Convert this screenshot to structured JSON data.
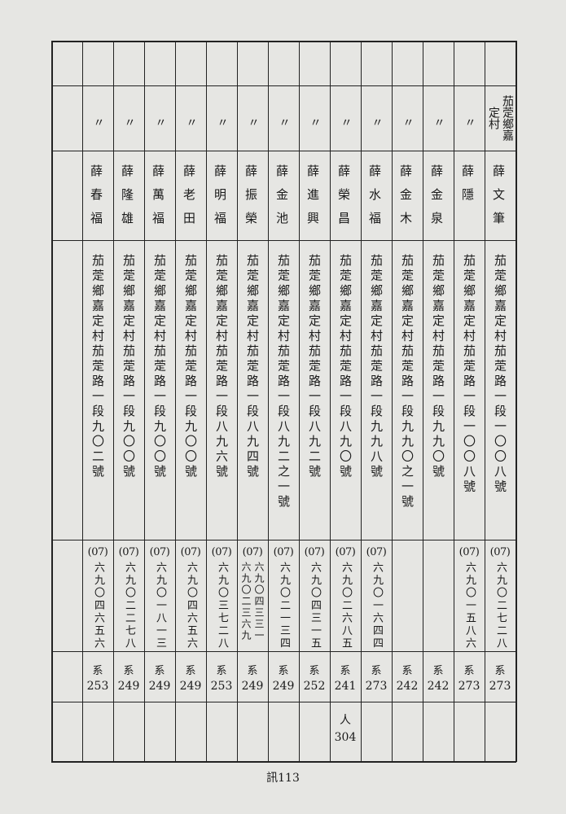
{
  "table": {
    "columns": [
      {
        "place": "茄萣鄉嘉定村",
        "name": "薛文筆",
        "address": "茄萣鄉嘉定村茄萣路一段一〇〇八號",
        "phone": {
          "area": "(07)",
          "numbers": [
            "六九〇二七二八"
          ]
        },
        "code_label": "系",
        "code": "273"
      },
      {
        "place": "〃",
        "name": "薛隱",
        "address": "茄萣鄉嘉定村茄萣路一段一〇〇八號",
        "phone": {
          "area": "(07)",
          "numbers": [
            "六九〇一五八六"
          ]
        },
        "code_label": "系",
        "code": "273"
      },
      {
        "place": "〃",
        "name": "薛金泉",
        "address": "茄萣鄉嘉定村茄萣路一段九九〇號",
        "code_label": "系",
        "code": "242"
      },
      {
        "place": "〃",
        "name": "薛金木",
        "address": "茄萣鄉嘉定村茄萣路一段九九〇之一號",
        "code_label": "系",
        "code": "242"
      },
      {
        "place": "〃",
        "name": "薛水福",
        "address": "茄萣鄉嘉定村茄萣路一段九九八號",
        "phone": {
          "area": "(07)",
          "numbers": [
            "六九〇一六四四"
          ]
        },
        "code_label": "系",
        "code": "273"
      },
      {
        "place": "〃",
        "name": "薛榮昌",
        "address": "茄萣鄉嘉定村茄萣路一段八九〇號",
        "phone": {
          "area": "(07)",
          "numbers": [
            "六九〇二六八五"
          ]
        },
        "code_label": "系",
        "code": "241",
        "extra_label": "人",
        "extra": "304"
      },
      {
        "place": "〃",
        "name": "薛進興",
        "address": "茄萣鄉嘉定村茄萣路一段八九二號",
        "phone": {
          "area": "(07)",
          "numbers": [
            "六九〇四三一五"
          ]
        },
        "code_label": "系",
        "code": "252"
      },
      {
        "place": "〃",
        "name": "薛金池",
        "address": "茄萣鄉嘉定村茄萣路一段八九二之一號",
        "phone": {
          "area": "(07)",
          "numbers": [
            "六九〇二一三四"
          ]
        },
        "code_label": "系",
        "code": "249"
      },
      {
        "place": "〃",
        "name": "薛振榮",
        "address": "茄萣鄉嘉定村茄萣路一段八九四號",
        "phone": {
          "area": "(07)",
          "numbers": [
            "六九〇四三三一",
            "六九〇二三六九"
          ]
        },
        "code_label": "系",
        "code": "249"
      },
      {
        "place": "〃",
        "name": "薛明福",
        "address": "茄萣鄉嘉定村茄萣路一段八九六號",
        "phone": {
          "area": "(07)",
          "numbers": [
            "六九〇三七二八"
          ]
        },
        "code_label": "系",
        "code": "253"
      },
      {
        "place": "〃",
        "name": "薛老田",
        "address": "茄萣鄉嘉定村茄萣路一段九〇〇號",
        "phone": {
          "area": "(07)",
          "numbers": [
            "六九〇四六五六"
          ]
        },
        "code_label": "系",
        "code": "249"
      },
      {
        "place": "〃",
        "name": "薛萬福",
        "address": "茄萣鄉嘉定村茄萣路一段九〇〇號",
        "phone": {
          "area": "(07)",
          "numbers": [
            "六九〇一八一三"
          ]
        },
        "code_label": "系",
        "code": "249"
      },
      {
        "place": "〃",
        "name": "薛隆雄",
        "address": "茄萣鄉嘉定村茄萣路一段九〇〇號",
        "phone": {
          "area": "(07)",
          "numbers": [
            "六九〇二二七八"
          ]
        },
        "code_label": "系",
        "code": "249"
      },
      {
        "place": "〃",
        "name": "薛春福",
        "address": "茄萣鄉嘉定村茄萣路一段九〇二號",
        "phone": {
          "area": "(07)",
          "numbers": [
            "六九〇四六五六"
          ]
        },
        "code_label": "系",
        "code": "253"
      }
    ]
  },
  "footer": "訊113"
}
